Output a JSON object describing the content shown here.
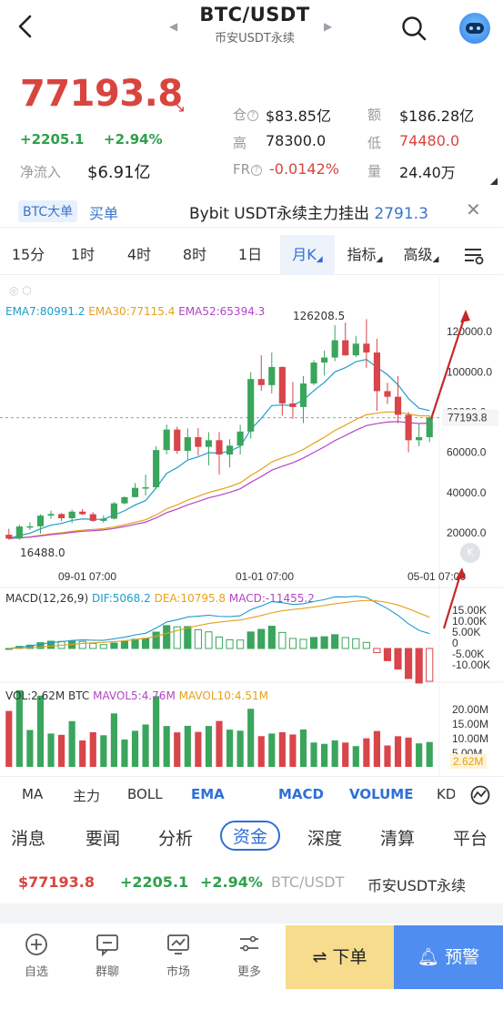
{
  "header": {
    "title": "BTC/USDT",
    "subtitle": "币安USDT永续"
  },
  "price": {
    "last": "77193.8",
    "change": "+2205.1",
    "change_pct": "+2.94%",
    "netflow_label": "净流入",
    "netflow_value": "$6.91亿",
    "stats": {
      "oi_label": "仓",
      "oi_value": "$83.85亿",
      "amount_label": "额",
      "amount_value": "$186.28亿",
      "high_label": "高",
      "high_value": "78300.0",
      "low_label": "低",
      "low_value": "74480.0",
      "fr_label": "FR",
      "fr_value": "-0.0142%",
      "vol_label": "量",
      "vol_value": "24.40万"
    }
  },
  "ticker": {
    "tag": "BTC大单",
    "partial": "买单",
    "text": "Bybit USDT永续主力挂出",
    "number": "2791.3"
  },
  "timeframes": [
    "15分",
    "1时",
    "4时",
    "8时",
    "1日",
    "月K",
    "指标",
    "高级"
  ],
  "active_timeframe": "月K",
  "chart": {
    "ema_labels": {
      "ema7": "EMA7:80991.2",
      "ema30": "EMA30:77115.4",
      "ema52": "EMA52:65394.3"
    },
    "macd_labels": {
      "name": "MACD(12,26,9)",
      "dif": "DIF:5068.2",
      "dea": "DEA:10795.8",
      "macd": "MACD:-11455.2"
    },
    "vol_labels": {
      "vol": "VOL:2.62M BTC",
      "mavol5": "MAVOL5:4.76M",
      "mavol10": "MAVOL10:4.51M"
    },
    "high_marker": "126208.5",
    "low_marker": "16488.0",
    "price_axis": [
      "120000.0",
      "100000.0",
      "80000.0",
      "60000.0",
      "40000.0",
      "20000.0"
    ],
    "current_price_tag": "77193.8",
    "time_axis": [
      "09-01 07:00",
      "01-01 07:00",
      "05-01 07:00"
    ],
    "macd_axis": [
      "15.00K",
      "10.00K",
      "5.00K",
      "0",
      "-5.00K",
      "-10.00K"
    ],
    "vol_axis": [
      "20.00M",
      "15.00M",
      "10.00M",
      "5.00M"
    ],
    "vol_current_tag": "2.62M",
    "colors": {
      "up": "#3aa55c",
      "down": "#d8454a",
      "ema7": "#1f9ccc",
      "ema30": "#e6a11b",
      "ema52": "#b543c9",
      "annotation_arrow": "#c62828"
    }
  },
  "chart_data": {
    "type": "candlestick",
    "interval": "monthly",
    "candles": [
      {
        "o": 19000,
        "h": 22000,
        "l": 16488,
        "c": 17100
      },
      {
        "o": 17100,
        "h": 24000,
        "l": 16500,
        "c": 23100
      },
      {
        "o": 23100,
        "h": 25200,
        "l": 21400,
        "c": 23200
      },
      {
        "o": 23200,
        "h": 29200,
        "l": 19600,
        "c": 28500
      },
      {
        "o": 28500,
        "h": 31000,
        "l": 26900,
        "c": 29300
      },
      {
        "o": 29300,
        "h": 29800,
        "l": 25800,
        "c": 27200
      },
      {
        "o": 27200,
        "h": 31400,
        "l": 24800,
        "c": 30500
      },
      {
        "o": 30500,
        "h": 31800,
        "l": 28800,
        "c": 29200
      },
      {
        "o": 29200,
        "h": 30200,
        "l": 25400,
        "c": 25900
      },
      {
        "o": 25900,
        "h": 28600,
        "l": 24900,
        "c": 27000
      },
      {
        "o": 27000,
        "h": 35300,
        "l": 26600,
        "c": 34600
      },
      {
        "o": 34600,
        "h": 38000,
        "l": 34100,
        "c": 37700
      },
      {
        "o": 37700,
        "h": 44700,
        "l": 37600,
        "c": 42300
      },
      {
        "o": 42300,
        "h": 48900,
        "l": 38500,
        "c": 42600
      },
      {
        "o": 42600,
        "h": 63000,
        "l": 41800,
        "c": 61100
      },
      {
        "o": 61100,
        "h": 73800,
        "l": 59000,
        "c": 71300
      },
      {
        "o": 71300,
        "h": 72700,
        "l": 59200,
        "c": 60700
      },
      {
        "o": 60700,
        "h": 71900,
        "l": 56500,
        "c": 67500
      },
      {
        "o": 67500,
        "h": 72000,
        "l": 58400,
        "c": 62700
      },
      {
        "o": 62700,
        "h": 70000,
        "l": 53500,
        "c": 66000
      },
      {
        "o": 66000,
        "h": 70000,
        "l": 49000,
        "c": 58900
      },
      {
        "o": 58900,
        "h": 66500,
        "l": 52500,
        "c": 63300
      },
      {
        "o": 63300,
        "h": 73600,
        "l": 58900,
        "c": 70300
      },
      {
        "o": 70300,
        "h": 99800,
        "l": 66800,
        "c": 96400
      },
      {
        "o": 96400,
        "h": 108300,
        "l": 90500,
        "c": 93400
      },
      {
        "o": 93400,
        "h": 109600,
        "l": 89200,
        "c": 102400
      },
      {
        "o": 102400,
        "h": 102700,
        "l": 78200,
        "c": 84300
      },
      {
        "o": 84300,
        "h": 95000,
        "l": 76600,
        "c": 82500
      },
      {
        "o": 82500,
        "h": 97900,
        "l": 74500,
        "c": 94200
      },
      {
        "o": 94200,
        "h": 105800,
        "l": 93400,
        "c": 104600
      },
      {
        "o": 104600,
        "h": 110600,
        "l": 98200,
        "c": 107100
      },
      {
        "o": 107100,
        "h": 123200,
        "l": 105300,
        "c": 115700
      },
      {
        "o": 115700,
        "h": 124500,
        "l": 108000,
        "c": 108200
      },
      {
        "o": 108200,
        "h": 117900,
        "l": 107300,
        "c": 114000
      },
      {
        "o": 114000,
        "h": 126208.5,
        "l": 102000,
        "c": 109600
      },
      {
        "o": 109600,
        "h": 116400,
        "l": 80600,
        "c": 90400
      },
      {
        "o": 90400,
        "h": 94600,
        "l": 84000,
        "c": 87600
      },
      {
        "o": 87600,
        "h": 97900,
        "l": 74500,
        "c": 78600
      },
      {
        "o": 78600,
        "h": 80000,
        "l": 60000,
        "c": 66000
      },
      {
        "o": 66000,
        "h": 74000,
        "l": 63000,
        "c": 67500
      },
      {
        "o": 67500,
        "h": 78300,
        "l": 65000,
        "c": 77193.8
      }
    ],
    "ylim": [
      10000,
      130000
    ]
  }
}
